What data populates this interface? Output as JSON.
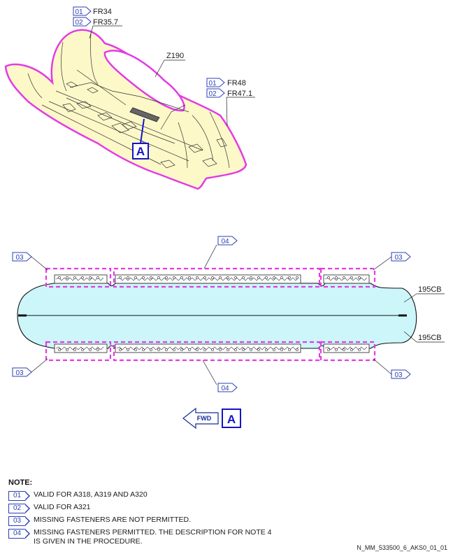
{
  "callouts": {
    "top_left": [
      {
        "tag": "01",
        "label": "FR34"
      },
      {
        "tag": "02",
        "label": "FR35.7"
      }
    ],
    "top_right": [
      {
        "tag": "01",
        "label": "FR48"
      },
      {
        "tag": "02",
        "label": "FR47.1"
      }
    ],
    "zone": "Z190",
    "view_marker": "A",
    "detail_tags": {
      "left_top": "03",
      "right_top": "03",
      "left_bottom": "03",
      "right_bottom": "03",
      "center_top": "04",
      "center_bottom": "04"
    },
    "frame_labels": [
      "195CB",
      "195CB"
    ]
  },
  "direction": {
    "label": "FWD",
    "view": "A"
  },
  "notes": {
    "title": "NOTE:",
    "items": [
      {
        "tag": "01",
        "text": "VALID FOR A318, A319 AND A320"
      },
      {
        "tag": "02",
        "text": "VALID FOR A321"
      },
      {
        "tag": "03",
        "text": "MISSING FASTENERS ARE NOT PERMITTED."
      },
      {
        "tag": "04",
        "text": "MISSING FASTENERS PERMITTED. THE DESCRIPTION FOR NOTE 4\nIS GIVEN IN THE PROCEDURE."
      }
    ]
  },
  "doc_ref": "N_MM_533500_6_AKS0_01_01",
  "colors": {
    "highlight": "#e43be4",
    "skin": "#fdf8c8",
    "panel": "#ccf6fa",
    "tag": "#2b3fb5",
    "marker": "#1414c8"
  }
}
